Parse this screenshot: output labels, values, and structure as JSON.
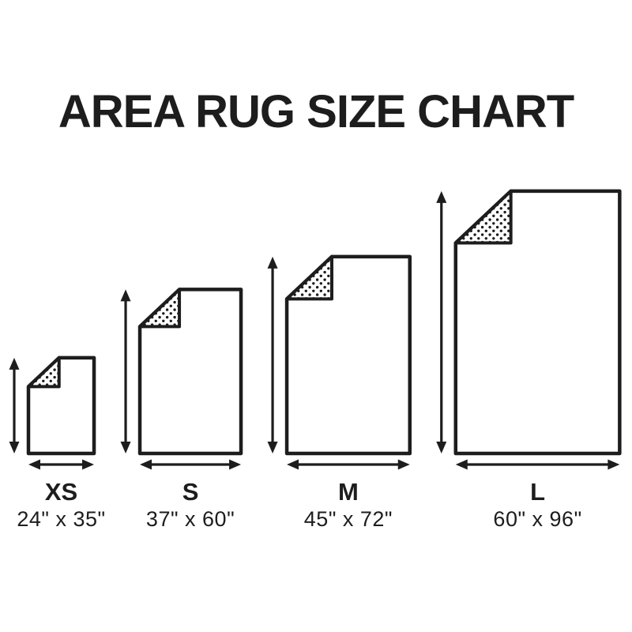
{
  "title": "AREA RUG SIZE CHART",
  "colors": {
    "ink": "#1d1d1d",
    "background": "#ffffff"
  },
  "chart_data": {
    "type": "table",
    "title": "AREA RUG SIZE CHART",
    "unit": "inches",
    "columns": [
      "size_label",
      "dimensions",
      "width_in",
      "height_in"
    ],
    "sizes": [
      {
        "label": "XS",
        "dimensions": "24\" x 35\"",
        "width_in": 24,
        "height_in": 35
      },
      {
        "label": "S",
        "dimensions": "37\" x 60\"",
        "width_in": 37,
        "height_in": 60
      },
      {
        "label": "M",
        "dimensions": "45\" x 72\"",
        "width_in": 45,
        "height_in": 72
      },
      {
        "label": "L",
        "dimensions": "60\" x 96\"",
        "width_in": 60,
        "height_in": 96
      }
    ]
  }
}
